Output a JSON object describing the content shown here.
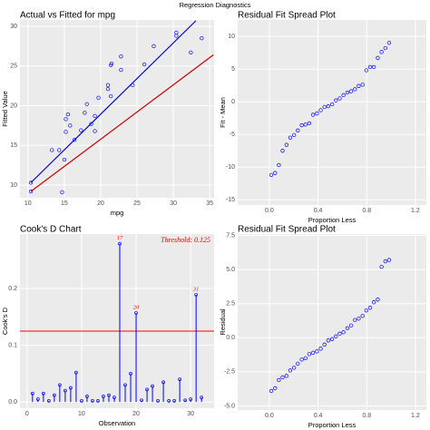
{
  "title": "Regression Diagnostics",
  "chart_data": [
    {
      "type": "scatter",
      "title": "Actual vs Fitted for mpg",
      "x_label": "mpg",
      "y_label": "Fitted Value",
      "xlim": [
        8.9,
        35.6
      ],
      "ylim": [
        8.4,
        30.8
      ],
      "xticks": [
        10,
        15,
        20,
        25,
        30,
        35
      ],
      "yticks": [
        10,
        15,
        20,
        25,
        30
      ],
      "color": "#0000ff",
      "x": [
        21,
        21,
        22.8,
        21.4,
        18.7,
        18.1,
        14.3,
        24.4,
        22.8,
        19.2,
        17.8,
        16.4,
        17.3,
        15.2,
        10.4,
        10.4,
        14.7,
        32.4,
        30.4,
        33.9,
        21.5,
        15.5,
        15.2,
        13.3,
        19.2,
        27.3,
        26,
        30.4,
        15.8,
        19.7,
        15,
        21.4
      ],
      "values": [
        22.6,
        22.1,
        26.2,
        21.2,
        17.7,
        20.2,
        14.4,
        22.6,
        24.5,
        18.7,
        19.1,
        15.7,
        16.9,
        16.7,
        10.3,
        9.2,
        9.1,
        26.7,
        28.8,
        28.5,
        25.3,
        18.9,
        18.3,
        14.4,
        16.8,
        27.5,
        25.2,
        29.2,
        17.5,
        21.0,
        13.2,
        25.1
      ],
      "lines": [
        {
          "color": "#0000cc",
          "x": [
            10.4,
            33.1
          ],
          "values": [
            10.3,
            30.7
          ]
        },
        {
          "color": "#cc0000",
          "x": [
            10.4,
            35.5
          ],
          "values": [
            9.2,
            26.4
          ]
        }
      ]
    },
    {
      "type": "scatter",
      "title": "Residual Fit Spread Plot",
      "x_label": "Proportion Less",
      "y_label": "Fit - Mean",
      "xlim": [
        -0.26,
        1.29
      ],
      "ylim": [
        -15.8,
        12.5
      ],
      "xticks": [
        {
          "value": 0,
          "label": "0.0"
        },
        0.4,
        0.8,
        1.2
      ],
      "yticks": [
        -15,
        -10,
        -5,
        0,
        5,
        10
      ],
      "color": "#0000ff",
      "x": [
        0.016,
        0.047,
        0.078,
        0.109,
        0.141,
        0.172,
        0.203,
        0.234,
        0.266,
        0.297,
        0.328,
        0.359,
        0.391,
        0.422,
        0.453,
        0.484,
        0.516,
        0.547,
        0.578,
        0.609,
        0.641,
        0.672,
        0.703,
        0.734,
        0.766,
        0.797,
        0.828,
        0.859,
        0.891,
        0.922,
        0.953,
        0.984
      ],
      "values": [
        -11.2,
        -10.9,
        -9.7,
        -7.5,
        -6.6,
        -5.5,
        -5.1,
        -4.4,
        -3.6,
        -3.5,
        -3.3,
        -2.0,
        -1.8,
        -1.3,
        -0.8,
        -0.7,
        -0.4,
        0.2,
        0.5,
        1.0,
        1.4,
        1.6,
        1.9,
        2.4,
        2.6,
        4.8,
        5.3,
        5.3,
        6.7,
        7.6,
        8.2,
        9.0
      ]
    },
    {
      "type": "lollipop",
      "title": "Cook's D Chart",
      "x_label": "Observation",
      "y_label": "Cook's D",
      "xlim": [
        -1.3,
        34.3
      ],
      "ylim": [
        -0.011,
        0.296
      ],
      "xticks": [
        0,
        10,
        20,
        30
      ],
      "yticks": [
        {
          "value": 0,
          "label": "0.0"
        },
        0.1,
        0.2
      ],
      "color": "#0000ff",
      "threshold": 0.125,
      "threshold_color": "#ff0000",
      "annotation": "Threshold: 0.125",
      "x": [
        1,
        2,
        3,
        4,
        5,
        6,
        7,
        8,
        9,
        10,
        11,
        12,
        13,
        14,
        15,
        16,
        17,
        18,
        19,
        20,
        21,
        22,
        23,
        24,
        25,
        26,
        27,
        28,
        29,
        30,
        31,
        32
      ],
      "values": [
        0.015,
        0.005,
        0.015,
        0.002,
        0.012,
        0.03,
        0.02,
        0.025,
        0.052,
        0.002,
        0.01,
        0.002,
        0.002,
        0.01,
        0.012,
        0.008,
        0.279,
        0.03,
        0.05,
        0.157,
        0.003,
        0.022,
        0.028,
        0.002,
        0.035,
        0.002,
        0.002,
        0.04,
        0.003,
        0.005,
        0.189,
        0.008
      ],
      "highlight": [
        17,
        20,
        31
      ]
    },
    {
      "type": "scatter",
      "title": "Residual Fit Spread Plot",
      "x_label": "Proportion Less",
      "y_label": "Residual",
      "xlim": [
        -0.26,
        1.29
      ],
      "ylim": [
        -5.3,
        7.6
      ],
      "xticks": [
        {
          "value": 0,
          "label": "0.0"
        },
        0.4,
        0.8,
        1.2
      ],
      "yticks": [
        {
          "value": -5,
          "label": "-5.0"
        },
        -2.5,
        {
          "value": 0,
          "label": "0.0"
        },
        2.5,
        {
          "value": 5,
          "label": "5.0"
        },
        7.5
      ],
      "color": "#0000ff",
      "x": [
        0.016,
        0.047,
        0.078,
        0.109,
        0.141,
        0.172,
        0.203,
        0.234,
        0.266,
        0.297,
        0.328,
        0.359,
        0.391,
        0.422,
        0.453,
        0.484,
        0.516,
        0.547,
        0.578,
        0.609,
        0.641,
        0.672,
        0.703,
        0.734,
        0.766,
        0.797,
        0.828,
        0.859,
        0.891,
        0.922,
        0.953,
        0.984
      ],
      "values": [
        -3.9,
        -3.7,
        -3.1,
        -2.9,
        -2.8,
        -2.4,
        -2.2,
        -1.9,
        -1.6,
        -1.5,
        -1.2,
        -1.1,
        -1.0,
        -0.8,
        -0.5,
        -0.2,
        -0.1,
        0.1,
        0.3,
        0.4,
        0.7,
        0.9,
        1.3,
        1.4,
        1.6,
        2.0,
        2.2,
        2.6,
        2.8,
        5.2,
        5.6,
        5.7
      ]
    }
  ]
}
